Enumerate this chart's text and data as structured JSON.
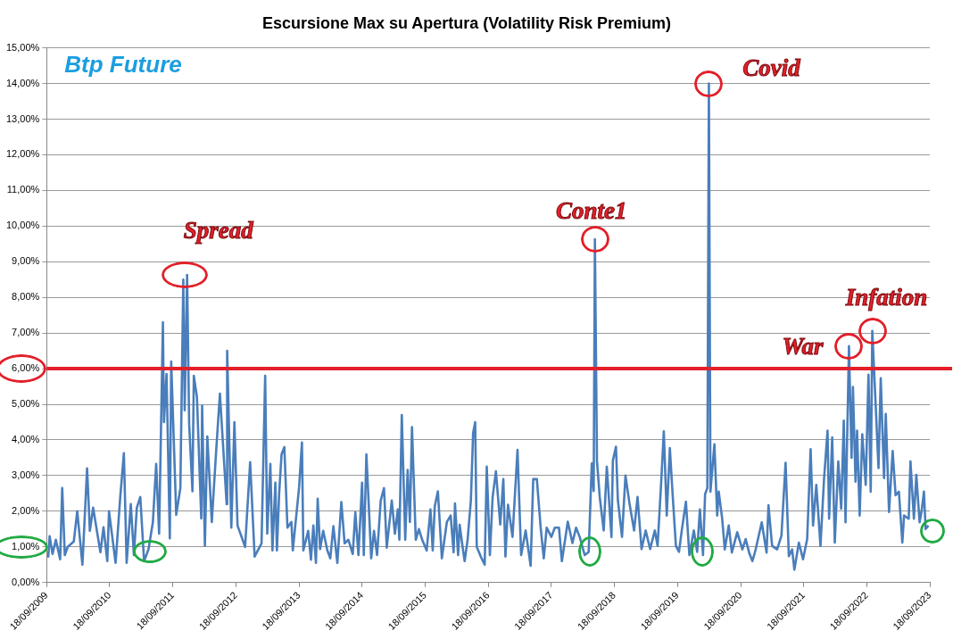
{
  "chart_data": {
    "type": "line",
    "title": "Escursione Max su Apertura (Volatility Risk Premium)",
    "annotations": [
      "Btp Future",
      {
        "text": "Spread",
        "x": "2011-12-10",
        "y": 8.63
      },
      {
        "text": "Conte1",
        "x": "2018-05-28",
        "y": 9.63
      },
      {
        "text": "Covid",
        "x": "2020-03-18",
        "y": 14
      },
      {
        "text": "War",
        "x": "2022-06-07",
        "y": 6.63
      },
      {
        "text": "Infation",
        "x": "2022-10-20",
        "y": 7.06
      }
    ],
    "x": [
      "2009-09-27",
      "2009-10-05",
      "2009-10-22",
      "2009-11-10",
      "2009-12-05",
      "2009-12-17",
      "2010-01-01",
      "2010-01-18",
      "2010-02-22",
      "2010-03-14",
      "2010-04-13",
      "2010-05-10",
      "2010-05-26",
      "2010-06-14",
      "2010-07-26",
      "2010-08-13",
      "2010-09-04",
      "2010-09-14",
      "2010-10-22",
      "2010-11-18",
      "2010-12-09",
      "2010-12-25",
      "2011-01-18",
      "2011-02-05",
      "2011-02-22",
      "2011-03-14",
      "2011-04-05",
      "2011-05-01",
      "2011-05-26",
      "2011-06-14",
      "2011-07-01",
      "2011-07-23",
      "2011-07-29",
      "2011-08-13",
      "2011-09-01",
      "2011-09-09",
      "2011-10-08",
      "2011-11-01",
      "2011-11-18",
      "2011-11-26",
      "2011-12-10",
      "2011-12-22",
      "2012-01-10",
      "2012-01-18",
      "2012-02-05",
      "2012-03-01",
      "2012-03-06",
      "2012-03-22",
      "2012-04-05",
      "2012-05-01",
      "2012-05-26",
      "2012-06-17",
      "2012-07-26",
      "2012-07-29",
      "2012-08-22",
      "2012-09-09",
      "2012-09-27",
      "2012-11-10",
      "2012-12-09",
      "2013-01-04",
      "2013-02-13",
      "2013-03-06",
      "2013-03-18",
      "2013-04-05",
      "2013-04-17",
      "2013-05-04",
      "2013-05-13",
      "2013-05-26",
      "2013-06-09",
      "2013-06-25",
      "2013-07-13",
      "2013-08-05",
      "2013-08-13",
      "2013-09-18",
      "2013-10-05",
      "2013-10-13",
      "2013-11-10",
      "2013-11-26",
      "2013-12-10",
      "2013-12-25",
      "2014-01-04",
      "2014-01-18",
      "2014-02-05",
      "2014-03-01",
      "2014-03-18",
      "2014-04-05",
      "2014-04-28",
      "2014-05-21",
      "2014-06-09",
      "2014-07-01",
      "2014-07-26",
      "2014-08-10",
      "2014-08-28",
      "2014-09-18",
      "2014-09-28",
      "2014-10-13",
      "2014-11-10",
      "2014-11-26",
      "2014-12-14",
      "2015-01-04",
      "2015-01-23",
      "2015-02-08",
      "2015-02-22",
      "2015-03-09",
      "2015-03-27",
      "2015-04-13",
      "2015-04-22",
      "2015-05-06",
      "2015-05-26",
      "2015-06-09",
      "2015-06-22",
      "2015-07-04",
      "2015-07-26",
      "2015-08-13",
      "2015-09-01",
      "2015-09-27",
      "2015-10-19",
      "2015-11-01",
      "2015-11-13",
      "2015-12-01",
      "2015-12-24",
      "2016-01-22",
      "2016-02-13",
      "2016-03-01",
      "2016-03-09",
      "2016-03-27",
      "2016-04-05",
      "2016-04-22",
      "2016-05-04",
      "2016-05-21",
      "2016-06-09",
      "2016-06-22",
      "2016-07-04",
      "2016-07-13",
      "2016-08-05",
      "2016-08-28",
      "2016-09-09",
      "2016-09-27",
      "2016-10-13",
      "2016-11-01",
      "2016-11-26",
      "2016-12-14",
      "2016-12-26",
      "2017-01-10",
      "2017-02-05",
      "2017-03-06",
      "2017-03-27",
      "2017-04-22",
      "2017-05-21",
      "2017-06-05",
      "2017-06-26",
      "2017-07-18",
      "2017-08-05",
      "2017-08-22",
      "2017-09-18",
      "2017-10-08",
      "2017-11-01",
      "2017-11-18",
      "2017-12-22",
      "2018-01-18",
      "2018-02-08",
      "2018-03-01",
      "2018-03-30",
      "2018-04-22",
      "2018-05-10",
      "2018-05-21",
      "2018-05-28",
      "2018-06-09",
      "2018-06-25",
      "2018-07-18",
      "2018-08-05",
      "2018-09-01",
      "2018-09-09",
      "2018-09-27",
      "2018-10-08",
      "2018-11-01",
      "2018-11-21",
      "2018-12-14",
      "2019-01-10",
      "2019-01-30",
      "2019-02-22",
      "2019-03-18",
      "2019-04-13",
      "2019-05-10",
      "2019-05-26",
      "2019-06-14",
      "2019-07-01",
      "2019-07-18",
      "2019-08-05",
      "2019-08-22",
      "2019-09-09",
      "2019-09-27",
      "2019-10-13",
      "2019-11-06",
      "2019-11-26",
      "2019-12-22",
      "2020-01-10",
      "2020-01-26",
      "2020-02-13",
      "2020-02-25",
      "2020-03-09",
      "2020-03-18",
      "2020-03-27",
      "2020-04-19",
      "2020-05-05",
      "2020-05-14",
      "2020-06-03",
      "2020-06-18",
      "2020-07-11",
      "2020-07-29",
      "2020-08-29",
      "2020-09-28",
      "2020-10-17",
      "2020-11-06",
      "2020-11-25",
      "2020-12-14",
      "2021-01-18",
      "2021-02-15",
      "2021-02-26",
      "2021-03-19",
      "2021-04-17",
      "2021-05-12",
      "2021-06-05",
      "2021-06-24",
      "2021-07-13",
      "2021-07-26",
      "2021-08-21",
      "2021-09-14",
      "2021-10-08",
      "2021-10-28",
      "2021-11-11",
      "2021-11-30",
      "2021-12-24",
      "2022-01-14",
      "2022-02-03",
      "2022-02-12",
      "2022-03-02",
      "2022-03-17",
      "2022-04-06",
      "2022-04-23",
      "2022-05-08",
      "2022-05-18",
      "2022-06-07",
      "2022-06-22",
      "2022-06-30",
      "2022-07-15",
      "2022-07-24",
      "2022-08-08",
      "2022-08-23",
      "2022-09-12",
      "2022-09-28",
      "2022-10-11",
      "2022-10-20",
      "2022-11-10",
      "2022-11-25",
      "2022-12-08",
      "2022-12-27",
      "2023-01-06",
      "2023-01-25",
      "2023-02-15",
      "2023-03-04",
      "2023-03-23",
      "2023-04-12",
      "2023-04-22",
      "2023-05-19",
      "2023-05-29",
      "2023-06-18",
      "2023-07-02",
      "2023-07-21",
      "2023-08-02",
      "2023-08-15",
      "2023-08-25",
      "2023-09-10"
    ],
    "series": [
      {
        "color": "#4a7ebb",
        "values": [
          0.7,
          1.3,
          0.8,
          1.2,
          0.65,
          2.65,
          0.77,
          1.0,
          1.15,
          2.0,
          0.5,
          3.2,
          1.45,
          2.1,
          0.85,
          1.55,
          0.6,
          2.0,
          0.55,
          2.4,
          3.63,
          0.55,
          2.2,
          0.77,
          2.1,
          2.4,
          0.6,
          0.94,
          1.7,
          3.33,
          1.37,
          7.3,
          4.5,
          5.85,
          1.24,
          6.2,
          1.9,
          2.65,
          8.5,
          4.83,
          8.63,
          4.44,
          2.56,
          5.8,
          5.2,
          1.8,
          4.96,
          1.03,
          4.1,
          1.7,
          3.67,
          5.3,
          2.2,
          6.5,
          1.54,
          4.5,
          1.6,
          1.0,
          3.38,
          0.73,
          1.1,
          5.8,
          1.37,
          3.33,
          0.9,
          2.8,
          0.9,
          2.5,
          3.6,
          3.8,
          1.54,
          1.7,
          0.9,
          2.65,
          3.93,
          0.9,
          1.45,
          0.64,
          1.6,
          0.55,
          2.35,
          0.94,
          1.45,
          0.9,
          0.68,
          1.58,
          0.55,
          2.26,
          1.1,
          1.2,
          0.8,
          1.97,
          0.77,
          2.8,
          0.77,
          3.6,
          0.68,
          1.45,
          0.77,
          2.3,
          2.65,
          0.98,
          1.62,
          2.3,
          1.37,
          2.05,
          1.2,
          4.7,
          1.2,
          3.16,
          1.7,
          4.36,
          1.2,
          1.5,
          1.2,
          0.9,
          2.05,
          0.9,
          2.14,
          2.56,
          0.68,
          1.7,
          1.88,
          0.85,
          2.22,
          0.77,
          1.62,
          1.0,
          0.6,
          1.2,
          2.3,
          4.2,
          4.5,
          1.0,
          0.73,
          0.5,
          3.25,
          0.77,
          2.4,
          3.12,
          1.63,
          2.9,
          0.73,
          2.18,
          1.28,
          3.72,
          0.77,
          1.46,
          0.47,
          2.9,
          2.9,
          1.54,
          0.68,
          1.54,
          1.28,
          1.54,
          1.54,
          0.6,
          1.71,
          1.11,
          1.54,
          1.28,
          0.77,
          0.86,
          3.34,
          2.57,
          9.63,
          3.42,
          2.4,
          1.46,
          3.25,
          1.28,
          3.42,
          3.81,
          2.31,
          1.28,
          3.0,
          2.23,
          1.46,
          2.4,
          0.94,
          1.46,
          0.94,
          1.46,
          1.03,
          2.65,
          4.24,
          1.88,
          3.77,
          2.4,
          1.03,
          0.86,
          1.46,
          2.27,
          0.77,
          1.46,
          0.86,
          2.05,
          0.77,
          2.48,
          2.65,
          14.0,
          2.55,
          3.88,
          1.88,
          2.55,
          1.79,
          0.93,
          1.6,
          0.84,
          1.41,
          0.93,
          1.22,
          0.84,
          0.6,
          0.93,
          1.69,
          0.84,
          2.17,
          1.03,
          0.93,
          1.31,
          3.36,
          0.74,
          0.93,
          0.36,
          1.12,
          0.65,
          1.22,
          3.74,
          1.6,
          2.74,
          1.03,
          2.93,
          4.26,
          1.79,
          4.07,
          1.12,
          3.4,
          2.07,
          4.54,
          1.69,
          6.63,
          3.5,
          5.49,
          2.83,
          4.26,
          1.88,
          4.16,
          2.74,
          5.83,
          2.55,
          7.06,
          4.83,
          3.21,
          5.73,
          2.93,
          4.73,
          1.98,
          3.69,
          2.45,
          2.55,
          1.12,
          1.88,
          1.79,
          3.4,
          1.79,
          3.02,
          1.69,
          2.02,
          2.55,
          1.5,
          1.6
        ]
      }
    ],
    "xlim": [
      "2009-09-18",
      "2023-09-18"
    ],
    "xticks": [
      {
        "value": "2009-09-18",
        "label": "18/09/2009"
      },
      {
        "value": "2010-09-18",
        "label": "18/09/2010"
      },
      {
        "value": "2011-09-18",
        "label": "18/09/2011"
      },
      {
        "value": "2012-09-18",
        "label": "18/09/2012"
      },
      {
        "value": "2013-09-18",
        "label": "18/09/2013"
      },
      {
        "value": "2014-09-18",
        "label": "18/09/2014"
      },
      {
        "value": "2015-09-18",
        "label": "18/09/2015"
      },
      {
        "value": "2016-09-18",
        "label": "18/09/2016"
      },
      {
        "value": "2017-09-18",
        "label": "18/09/2017"
      },
      {
        "value": "2018-09-18",
        "label": "18/09/2018"
      },
      {
        "value": "2019-09-18",
        "label": "18/09/2019"
      },
      {
        "value": "2020-09-18",
        "label": "18/09/2020"
      },
      {
        "value": "2021-09-18",
        "label": "18/09/2021"
      },
      {
        "value": "2022-09-18",
        "label": "18/09/2022"
      },
      {
        "value": "2023-09-18",
        "label": "18/09/2023"
      }
    ],
    "ylim": [
      0,
      15
    ],
    "yticks": [
      {
        "value": 0,
        "label": "0,00%"
      },
      {
        "value": 1,
        "label": "1,00%"
      },
      {
        "value": 2,
        "label": "2,00%"
      },
      {
        "value": 3,
        "label": "3,00%"
      },
      {
        "value": 4,
        "label": "4,00%"
      },
      {
        "value": 5,
        "label": "5,00%"
      },
      {
        "value": 6,
        "label": "6,00%"
      },
      {
        "value": 7,
        "label": "7,00%"
      },
      {
        "value": 8,
        "label": "8,00%"
      },
      {
        "value": 9,
        "label": "9,00%"
      },
      {
        "value": 10,
        "label": "10,00%"
      },
      {
        "value": 11,
        "label": "11,00%"
      },
      {
        "value": 12,
        "label": "12,00%"
      },
      {
        "value": 13,
        "label": "13,00%"
      },
      {
        "value": 14,
        "label": "14,00%"
      },
      {
        "value": 15,
        "label": "15,00%"
      }
    ],
    "ref_lines": [
      {
        "axis": "y",
        "value": 6,
        "color": "#e3202a"
      }
    ],
    "grid": "y",
    "legend": false,
    "marker": "none",
    "line_style": "solid"
  }
}
